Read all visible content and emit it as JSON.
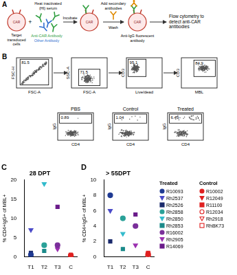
{
  "figure": {
    "panel_labels": [
      "A",
      "B",
      "C",
      "D"
    ],
    "schematic": {
      "receptor": "CAR",
      "target_cells": "Target transduced cells",
      "serum": "Heat inactivated (HI) serum",
      "anti_car": "Anti-CAR Antibody",
      "other_antibody": "Other Antibody",
      "incubate": "Incubate",
      "add_secondary": "Add secondary antibodies",
      "wash": "Wash",
      "secondary": "Anti-IgG fluorescent antibody",
      "readout": "Flow cytometry to detect anti-CAR antibodies"
    },
    "gating": {
      "row1": [
        {
          "x": "FSC-A",
          "y": "FSC-H",
          "gate": "81.5"
        },
        {
          "x": "FSC-A",
          "y": "SSC-A",
          "gate": "71.5"
        },
        {
          "x": "Live/dead",
          "y": "CD3",
          "gate": "95.1"
        },
        {
          "x": "MBL",
          "y": "CD3",
          "gate": "84.9"
        }
      ],
      "row2": [
        {
          "title": "PBS",
          "x": "CD4",
          "y": "IgG",
          "gate": "0.89"
        },
        {
          "title": "Control",
          "x": "CD4",
          "y": "IgG",
          "gate": "1.04"
        },
        {
          "title": "Treated",
          "x": "CD4",
          "y": "IgG",
          "gate": "6.49"
        }
      ]
    },
    "legend_groups": [
      {
        "title": "Treated",
        "names": [
          "R10093",
          "Rh2537",
          "Rh2526",
          "Rh2858",
          "Rh2850",
          "Rh2853",
          "R16002",
          "Rh2905",
          "R14069"
        ]
      },
      {
        "title": "Control",
        "names": [
          "R10002",
          "R12049",
          "R11100",
          "R12034",
          "Rh2918",
          "RhBK73"
        ]
      }
    ]
  },
  "chart_data": [
    {
      "type": "scatter",
      "title": "28 DPT",
      "y_label": "% CD4+IgG+ of MBL+",
      "categories": [
        "T1",
        "T2",
        "T3",
        "C"
      ],
      "ylim": [
        0,
        20
      ],
      "yticks": [
        0,
        5,
        10,
        15,
        20
      ],
      "grid": false,
      "series": [
        {
          "name": "R10093",
          "color": "#1f3a93",
          "marker": "circle",
          "values": [
            0.5,
            null,
            null,
            null
          ]
        },
        {
          "name": "Rh2537",
          "color": "#4a4ac8",
          "marker": "triangle-down",
          "values": [
            7,
            null,
            null,
            null
          ]
        },
        {
          "name": "Rh2526",
          "color": "#1a2a6c",
          "marker": "square",
          "values": [
            1,
            null,
            null,
            null
          ]
        },
        {
          "name": "Rh2858",
          "color": "#2aa198",
          "marker": "circle",
          "values": [
            null,
            3,
            null,
            null
          ]
        },
        {
          "name": "Rh2850",
          "color": "#33bbcc",
          "marker": "triangle-down",
          "values": [
            null,
            19,
            null,
            null
          ]
        },
        {
          "name": "Rh2853",
          "color": "#1b8a8a",
          "marker": "square",
          "values": [
            null,
            1.5,
            null,
            null
          ]
        },
        {
          "name": "R16002",
          "color": "#7a2f9a",
          "marker": "circle",
          "values": [
            null,
            null,
            3,
            null
          ]
        },
        {
          "name": "Rh2905",
          "color": "#9b30b0",
          "marker": "triangle-down",
          "values": [
            null,
            null,
            2,
            null
          ]
        },
        {
          "name": "R14069",
          "color": "#6a1b8a",
          "marker": "square",
          "values": [
            null,
            null,
            13,
            null
          ]
        },
        {
          "name": "R10002",
          "color": "#e02020",
          "marker": "circle",
          "values": [
            null,
            null,
            null,
            0.2
          ]
        },
        {
          "name": "R12049",
          "color": "#e02020",
          "marker": "triangle-down",
          "values": [
            null,
            null,
            null,
            0.4
          ]
        },
        {
          "name": "R11100",
          "color": "#e02020",
          "marker": "square",
          "values": [
            null,
            null,
            null,
            0.1
          ]
        },
        {
          "name": "R12034",
          "color": "#e02020",
          "marker": "circle-open",
          "values": [
            null,
            null,
            null,
            0.3
          ]
        },
        {
          "name": "Rh2918",
          "color": "#e02020",
          "marker": "triangle-down-open",
          "values": [
            null,
            null,
            null,
            0.2
          ]
        },
        {
          "name": "RhBK73",
          "color": "#e02020",
          "marker": "square-open",
          "values": [
            null,
            null,
            null,
            0.5
          ]
        }
      ]
    },
    {
      "type": "scatter",
      "title": "> 55DPT",
      "y_label": "% CD4+IgG+ of MBL+",
      "categories": [
        "T1",
        "T2",
        "T3",
        "C"
      ],
      "ylim": [
        0,
        10
      ],
      "yticks": [
        0,
        2,
        4,
        6,
        8,
        10
      ],
      "grid": false,
      "series": [
        {
          "name": "R10093",
          "color": "#1f3a93",
          "marker": "circle",
          "values": [
            8,
            null,
            null,
            null
          ]
        },
        {
          "name": "Rh2537",
          "color": "#4a4ac8",
          "marker": "triangle-down",
          "values": [
            6,
            null,
            null,
            null
          ]
        },
        {
          "name": "Rh2526",
          "color": "#1a2a6c",
          "marker": "square",
          "values": [
            2,
            null,
            null,
            null
          ]
        },
        {
          "name": "Rh2858",
          "color": "#2aa198",
          "marker": "circle",
          "values": [
            null,
            5,
            null,
            null
          ]
        },
        {
          "name": "Rh2850",
          "color": "#33bbcc",
          "marker": "triangle-down",
          "values": [
            null,
            3,
            null,
            null
          ]
        },
        {
          "name": "Rh2853",
          "color": "#1b8a8a",
          "marker": "square",
          "values": [
            null,
            1,
            null,
            null
          ]
        },
        {
          "name": "R16002",
          "color": "#7a2f9a",
          "marker": "circle",
          "values": [
            null,
            null,
            4,
            null
          ]
        },
        {
          "name": "Rh2905",
          "color": "#9b30b0",
          "marker": "triangle-down",
          "values": [
            null,
            null,
            1.5,
            null
          ]
        },
        {
          "name": "R14069",
          "color": "#6a1b8a",
          "marker": "square",
          "values": [
            null,
            null,
            5.5,
            null
          ]
        },
        {
          "name": "R10002",
          "color": "#e02020",
          "marker": "circle",
          "values": [
            null,
            null,
            null,
            0.3
          ]
        },
        {
          "name": "R12049",
          "color": "#e02020",
          "marker": "triangle-down",
          "values": [
            null,
            null,
            null,
            0.2
          ]
        },
        {
          "name": "R11100",
          "color": "#e02020",
          "marker": "square",
          "values": [
            null,
            null,
            null,
            0.5
          ]
        },
        {
          "name": "R12034",
          "color": "#e02020",
          "marker": "circle-open",
          "values": [
            null,
            null,
            null,
            0.1
          ]
        },
        {
          "name": "Rh2918",
          "color": "#e02020",
          "marker": "triangle-down-open",
          "values": [
            null,
            null,
            null,
            0.4
          ]
        },
        {
          "name": "RhBK73",
          "color": "#e02020",
          "marker": "square-open",
          "values": [
            null,
            null,
            null,
            0.2
          ]
        }
      ]
    }
  ]
}
